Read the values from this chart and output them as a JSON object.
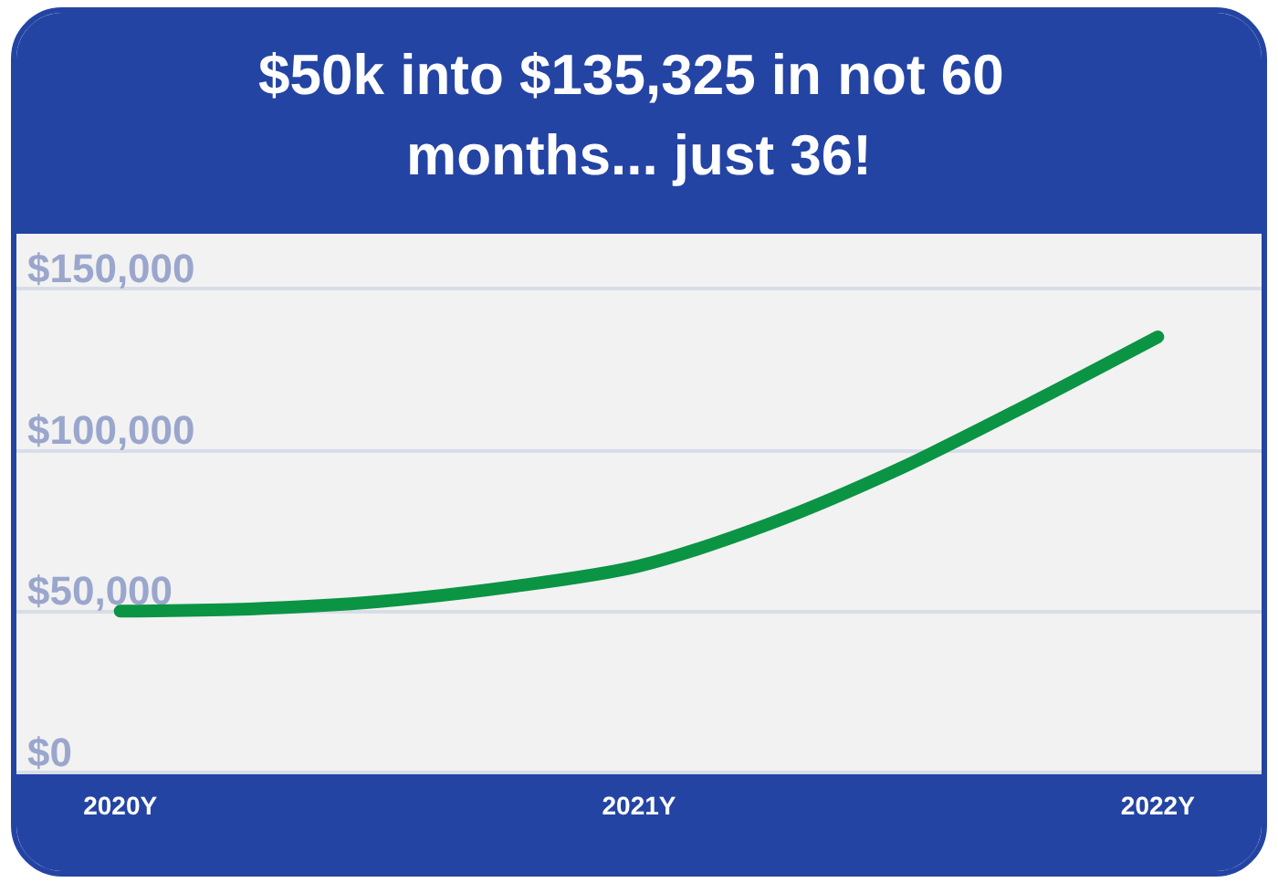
{
  "chart_data": {
    "type": "line",
    "title": "$50k into $135,325 in not 60 months... just 36!",
    "x": [
      2020,
      2020.25,
      2020.5,
      2020.75,
      2021,
      2021.25,
      2021.5,
      2021.75,
      2022
    ],
    "series": [
      {
        "color": "#0a9444",
        "values": [
          50000,
          50700,
          53000,
          57500,
          64000,
          77000,
          94000,
          114000,
          135000
        ]
      }
    ],
    "xlim": [
      2019.8,
      2022.2
    ],
    "xticks": [
      {
        "value": 2020,
        "label": "2020Y"
      },
      {
        "value": 2021,
        "label": "2021Y"
      },
      {
        "value": 2022,
        "label": "2022Y"
      }
    ],
    "ylim": [
      0,
      167000
    ],
    "yticks": [
      {
        "value": 0,
        "label": "$0"
      },
      {
        "value": 50000,
        "label": "$50,000"
      },
      {
        "value": 100000,
        "label": "$100,000"
      },
      {
        "value": 150000,
        "label": "$150,000"
      }
    ],
    "grid": "y",
    "marker": "none",
    "line_style": "solid"
  }
}
